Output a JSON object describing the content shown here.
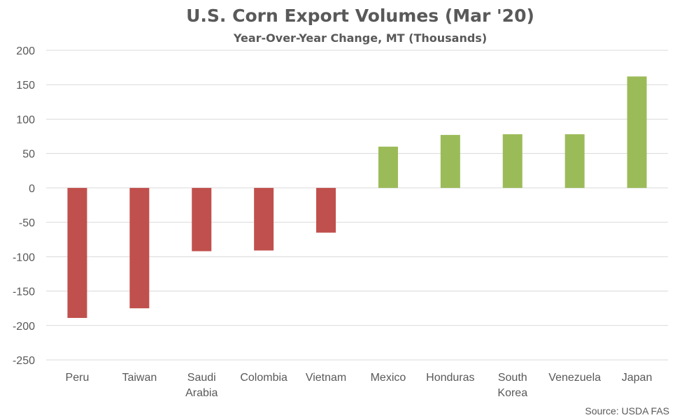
{
  "chart_data": {
    "type": "bar",
    "title": "U.S. Corn Export Volumes (Mar '20)",
    "subtitle": "Year-Over-Year Change, MT (Thousands)",
    "categories": [
      "Peru",
      "Taiwan",
      "Saudi Arabia",
      "Colombia",
      "Vietnam",
      "Mexico",
      "Honduras",
      "South Korea",
      "Venezuela",
      "Japan"
    ],
    "category_lines": [
      [
        "Peru"
      ],
      [
        "Taiwan"
      ],
      [
        "Saudi",
        "Arabia"
      ],
      [
        "Colombia"
      ],
      [
        "Vietnam"
      ],
      [
        "Mexico"
      ],
      [
        "Honduras"
      ],
      [
        "South",
        "Korea"
      ],
      [
        "Venezuela"
      ],
      [
        "Japan"
      ]
    ],
    "values": [
      -189,
      -175,
      -92,
      -91,
      -65,
      60,
      77,
      78,
      78,
      162
    ],
    "ylim": [
      -250,
      200
    ],
    "yticks": [
      200,
      150,
      100,
      50,
      0,
      -50,
      -100,
      -150,
      -200,
      -250
    ],
    "grid": true,
    "legend": "none",
    "colors": {
      "positive": "#9BBB59",
      "negative": "#C0504D"
    },
    "source": "Source: USDA FAS"
  }
}
